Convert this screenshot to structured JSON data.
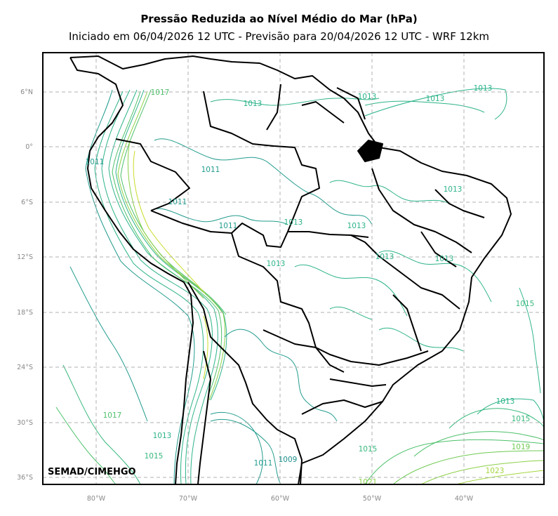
{
  "title": "Pressão Reduzida ao Nível Médio do Mar (hPa)",
  "subtitle": "Iniciado em 06/04/2026 12 UTC - Previsão para 20/04/2026 12 UTC - WRF 12km",
  "credit": "SEMAD/CIMEHGO",
  "lat_labels": [
    "6°N",
    "0°",
    "6°S",
    "12°S",
    "18°S",
    "24°S",
    "30°S",
    "36°S"
  ],
  "lon_labels": [
    "80°W",
    "70°W",
    "60°W",
    "50°W",
    "40°W"
  ],
  "isobar_labels": [
    {
      "text": "1013",
      "color": "#2db38a"
    },
    {
      "text": "1013",
      "color": "#2db38a"
    },
    {
      "text": "1013",
      "color": "#2db38a"
    },
    {
      "text": "1013",
      "color": "#2db38a"
    },
    {
      "text": "1017",
      "color": "#4cc06a"
    },
    {
      "text": "1011",
      "color": "#239c8e"
    },
    {
      "text": "1011",
      "color": "#239c8e"
    },
    {
      "text": "1011",
      "color": "#239c8e"
    },
    {
      "text": "1011",
      "color": "#239c8e"
    },
    {
      "text": "1013",
      "color": "#2db38a"
    },
    {
      "text": "1013",
      "color": "#2db38a"
    },
    {
      "text": "1013",
      "color": "#2db38a"
    },
    {
      "text": "1013",
      "color": "#2db38a"
    },
    {
      "text": "1013",
      "color": "#2db38a"
    },
    {
      "text": "1013",
      "color": "#2db38a"
    },
    {
      "text": "1015",
      "color": "#37b87c"
    },
    {
      "text": "1013",
      "color": "#2db38a"
    },
    {
      "text": "1015",
      "color": "#37b87c"
    },
    {
      "text": "1019",
      "color": "#6fca52"
    },
    {
      "text": "1023",
      "color": "#a3d63e"
    },
    {
      "text": "1017",
      "color": "#4cc06a"
    },
    {
      "text": "1013",
      "color": "#2db38a"
    },
    {
      "text": "1015",
      "color": "#37b87c"
    },
    {
      "text": "1011",
      "color": "#239c8e"
    },
    {
      "text": "1009",
      "color": "#1f8f8c"
    },
    {
      "text": "1021",
      "color": "#8bd046"
    },
    {
      "text": "1015",
      "color": "#37b87c"
    }
  ],
  "colors": {
    "frame": "#000000",
    "grid": "#b0b0b0",
    "borders": "#000000",
    "iso_low": "#1f8f8c",
    "iso_mid": "#2db38a",
    "iso_high": "#6fca52",
    "iso_peak": "#c8dc2c"
  }
}
